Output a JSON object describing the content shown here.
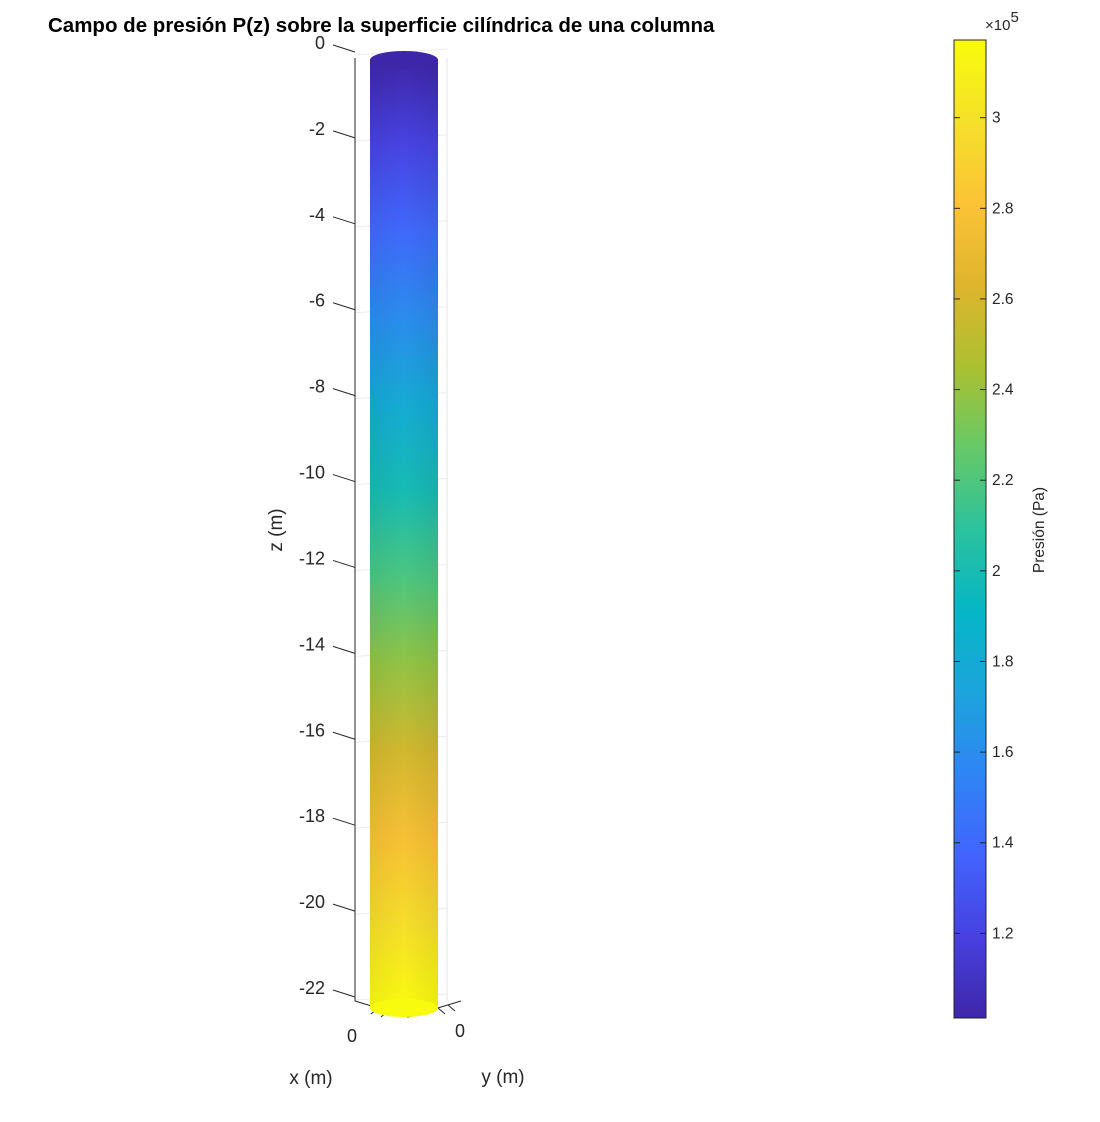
{
  "chart_data": {
    "type": "surface",
    "title": "Campo de presión P(z) sobre la superficie cilíndrica de una columna",
    "xlabel": "x (m)",
    "ylabel": "y (m)",
    "zlabel": "z (m)",
    "z_ticks": [
      0,
      -2,
      -4,
      -6,
      -8,
      -10,
      -12,
      -14,
      -16,
      -18,
      -20,
      -22
    ],
    "z_tick_labels": [
      "0",
      "-2",
      "-4",
      "-6",
      "-8",
      "-10",
      "-12",
      "-14",
      "-16",
      "-18",
      "-20",
      "-22"
    ],
    "x_tick_labels": [
      "0"
    ],
    "y_tick_labels": [
      "0"
    ],
    "zlim": [
      -22,
      0
    ],
    "column_depth_range": [
      -22,
      0
    ],
    "pressure_series": {
      "name": "",
      "z": [
        0,
        -2,
        -4,
        -6,
        -8,
        -10,
        -12,
        -14,
        -16,
        -18,
        -20,
        -22
      ],
      "values": [
        101325,
        120945,
        140565,
        160185,
        179805,
        199425,
        219045,
        238665,
        258285,
        277905,
        297525,
        317145
      ]
    },
    "colorbar": {
      "label": "Presión (Pa)",
      "exponent_prefix": "×10",
      "exponent": "5",
      "limits": [
        1.01325,
        3.17145
      ],
      "ticks": [
        1.2,
        1.4,
        1.6,
        1.8,
        2,
        2.2,
        2.4,
        2.6,
        2.8,
        3
      ],
      "tick_labels": [
        "1.2",
        "1.4",
        "1.6",
        "1.8",
        "2",
        "2.2",
        "2.4",
        "2.6",
        "2.8",
        "3"
      ],
      "colormap": "parula",
      "colormap_colors": [
        "#3e26a8",
        "#4741e0",
        "#4264fd",
        "#2f85f4",
        "#1da4dc",
        "#06b6c5",
        "#2cc29d",
        "#66c968",
        "#acc030",
        "#dfb52e",
        "#fcc337",
        "#f5e02a",
        "#f9fb0e"
      ]
    },
    "grid": true
  }
}
